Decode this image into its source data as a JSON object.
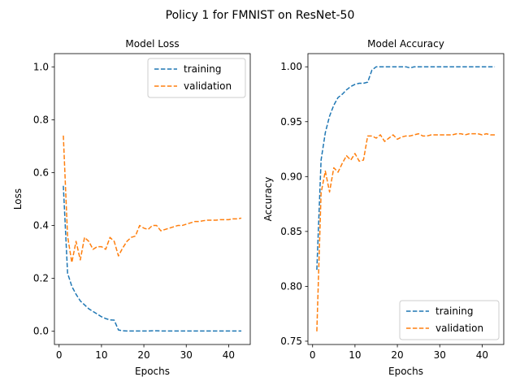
{
  "figure": {
    "suptitle": "Policy 1 for FMNIST on ResNet-50"
  },
  "colors": {
    "training": "#1f77b4",
    "validation": "#ff7f0e"
  },
  "chart_data": [
    {
      "type": "line",
      "title": "Model Loss",
      "xlabel": "Epochs",
      "ylabel": "Loss",
      "xlim": [
        -1.1,
        45.1
      ],
      "ylim": [
        -0.05,
        1.05
      ],
      "xticks": [
        0,
        10,
        20,
        30,
        40
      ],
      "yticks": [
        0.0,
        0.2,
        0.4,
        0.6,
        0.8,
        1.0
      ],
      "ytick_decimals": 1,
      "grid": false,
      "legend": "upper right",
      "x": [
        1,
        2,
        3,
        4,
        5,
        6,
        7,
        8,
        9,
        10,
        11,
        12,
        13,
        14,
        15,
        16,
        17,
        18,
        19,
        20,
        21,
        22,
        23,
        24,
        25,
        26,
        27,
        28,
        29,
        30,
        31,
        32,
        33,
        34,
        35,
        36,
        37,
        38,
        39,
        40,
        41,
        42,
        43
      ],
      "series": [
        {
          "name": "training",
          "color_key": "training",
          "values": [
            0.55,
            0.22,
            0.17,
            0.14,
            0.115,
            0.1,
            0.085,
            0.075,
            0.065,
            0.055,
            0.048,
            0.043,
            0.042,
            0.005,
            0.002,
            0.001,
            0.001,
            0.001,
            0.001,
            0.001,
            0.001,
            0.002,
            0.002,
            0.001,
            0.001,
            0.001,
            0.001,
            0.001,
            0.001,
            0.001,
            0.001,
            0.001,
            0.001,
            0.001,
            0.001,
            0.001,
            0.001,
            0.001,
            0.001,
            0.001,
            0.001,
            0.001,
            0.001
          ]
        },
        {
          "name": "validation",
          "color_key": "validation",
          "values": [
            0.74,
            0.36,
            0.26,
            0.34,
            0.27,
            0.355,
            0.34,
            0.31,
            0.32,
            0.32,
            0.31,
            0.355,
            0.34,
            0.285,
            0.315,
            0.34,
            0.355,
            0.36,
            0.4,
            0.39,
            0.385,
            0.4,
            0.4,
            0.38,
            0.385,
            0.39,
            0.395,
            0.4,
            0.4,
            0.405,
            0.41,
            0.415,
            0.415,
            0.418,
            0.42,
            0.42,
            0.42,
            0.422,
            0.422,
            0.422,
            0.425,
            0.425,
            0.428
          ]
        }
      ]
    },
    {
      "type": "line",
      "title": "Model Accuracy",
      "xlabel": "Epochs",
      "ylabel": "Accuracy",
      "xlim": [
        -1.1,
        45.1
      ],
      "ylim": [
        0.747,
        1.012
      ],
      "xticks": [
        0,
        10,
        20,
        30,
        40
      ],
      "yticks": [
        0.75,
        0.8,
        0.85,
        0.9,
        0.95,
        1.0
      ],
      "ytick_decimals": 2,
      "grid": false,
      "legend": "lower right",
      "x": [
        1,
        2,
        3,
        4,
        5,
        6,
        7,
        8,
        9,
        10,
        11,
        12,
        13,
        14,
        15,
        16,
        17,
        18,
        19,
        20,
        21,
        22,
        23,
        24,
        25,
        26,
        27,
        28,
        29,
        30,
        31,
        32,
        33,
        34,
        35,
        36,
        37,
        38,
        39,
        40,
        41,
        42,
        43
      ],
      "series": [
        {
          "name": "training",
          "color_key": "training",
          "values": [
            0.815,
            0.915,
            0.94,
            0.955,
            0.965,
            0.972,
            0.975,
            0.979,
            0.982,
            0.984,
            0.985,
            0.985,
            0.986,
            0.997,
            1.0,
            1.0,
            1.0,
            1.0,
            1.0,
            1.0,
            1.0,
            1.0,
            0.999,
            1.0,
            1.0,
            1.0,
            1.0,
            1.0,
            1.0,
            1.0,
            1.0,
            1.0,
            1.0,
            1.0,
            1.0,
            1.0,
            1.0,
            1.0,
            1.0,
            1.0,
            1.0,
            1.0,
            1.0
          ]
        },
        {
          "name": "validation",
          "color_key": "validation",
          "values": [
            0.759,
            0.885,
            0.905,
            0.886,
            0.908,
            0.904,
            0.912,
            0.919,
            0.915,
            0.921,
            0.914,
            0.915,
            0.937,
            0.937,
            0.935,
            0.938,
            0.932,
            0.935,
            0.938,
            0.934,
            0.936,
            0.937,
            0.937,
            0.938,
            0.939,
            0.937,
            0.937,
            0.938,
            0.938,
            0.938,
            0.938,
            0.938,
            0.938,
            0.939,
            0.939,
            0.938,
            0.939,
            0.939,
            0.939,
            0.938,
            0.939,
            0.938,
            0.938
          ]
        }
      ]
    }
  ]
}
